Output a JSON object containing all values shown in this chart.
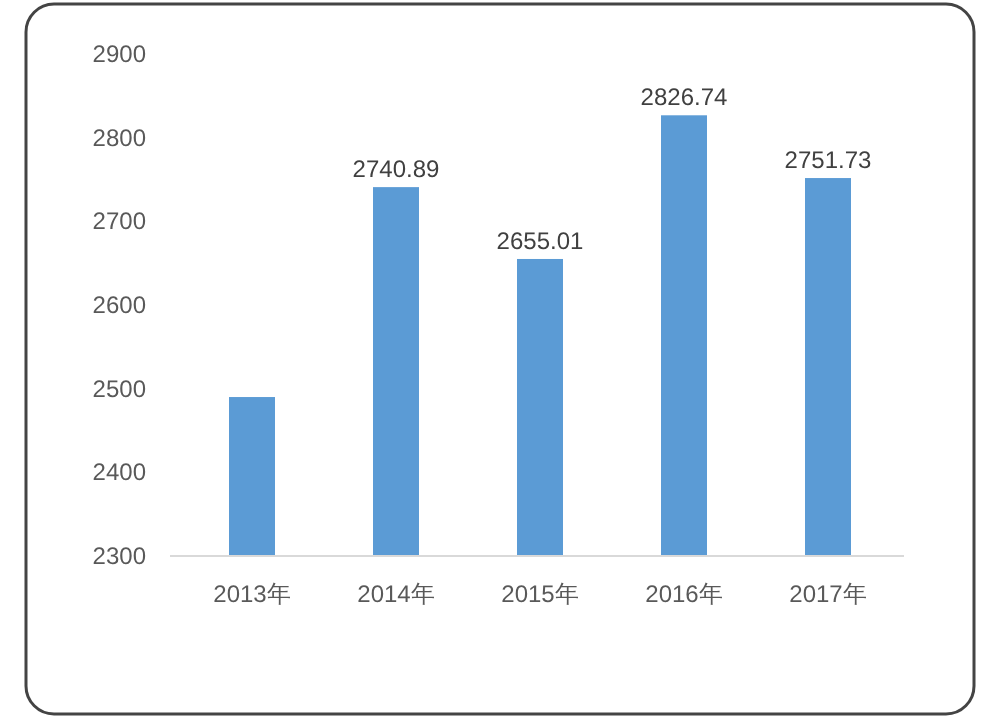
{
  "chart_data": {
    "type": "bar",
    "categories": [
      "2013年",
      "2014年",
      "2015年",
      "2016年",
      "2017年"
    ],
    "values": [
      2490,
      2740.89,
      2655.01,
      2826.74,
      2751.73
    ],
    "value_labels": [
      null,
      "2740.89",
      "2655.01",
      "2826.74",
      "2751.73"
    ],
    "color": "#5b9bd5",
    "ylim": [
      2300,
      2900
    ],
    "yticks": [
      2300,
      2400,
      2500,
      2600,
      2700,
      2800,
      2900
    ],
    "grid": false
  }
}
